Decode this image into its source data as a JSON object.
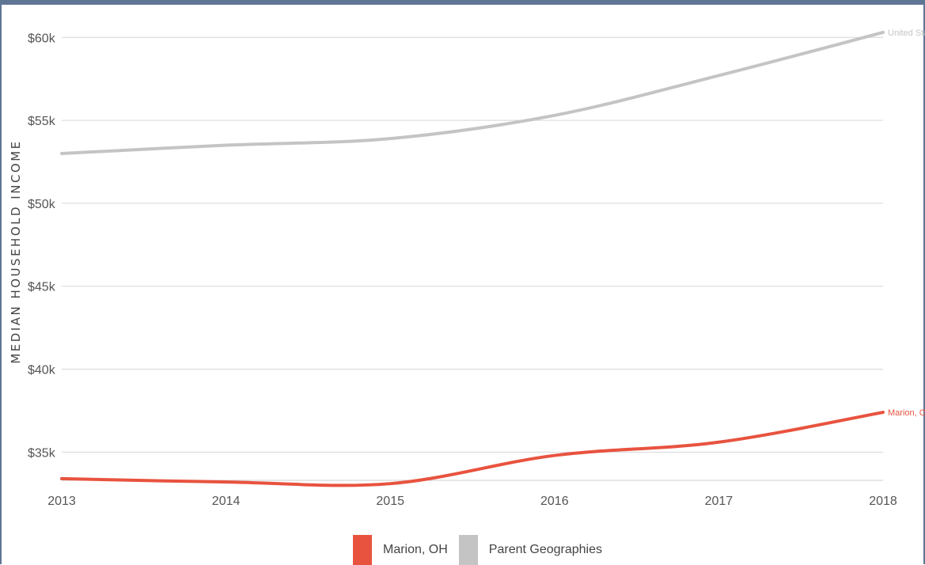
{
  "chart_data": {
    "type": "line",
    "title": "",
    "xlabel": "",
    "ylabel": "MEDIAN HOUSEHOLD INCOME",
    "x": [
      2013,
      2014,
      2015,
      2016,
      2017,
      2018
    ],
    "x_tick_labels": [
      "2013",
      "2014",
      "2015",
      "2016",
      "2017",
      "2018"
    ],
    "y_ticks": [
      35000,
      40000,
      45000,
      50000,
      55000,
      60000
    ],
    "y_tick_labels": [
      "$35k",
      "$40k",
      "$45k",
      "$50k",
      "$55k",
      "$60k"
    ],
    "ylim": [
      33300,
      61300
    ],
    "grid": true,
    "legend_position": "bottom",
    "series": [
      {
        "name": "Marion, OH",
        "color": "#e8533f",
        "end_label": "Marion, OH",
        "values": [
          33400,
          33200,
          33100,
          34800,
          35600,
          37400
        ]
      },
      {
        "name": "Parent Geographies",
        "color": "#c4c4c4",
        "end_label": "United States",
        "values": [
          53000,
          53500,
          53900,
          55300,
          57700,
          60300
        ]
      }
    ]
  },
  "legend": {
    "items": [
      {
        "label": "Marion, OH",
        "color": "#e8533f"
      },
      {
        "label": "Parent Geographies",
        "color": "#c4c4c4"
      }
    ]
  }
}
